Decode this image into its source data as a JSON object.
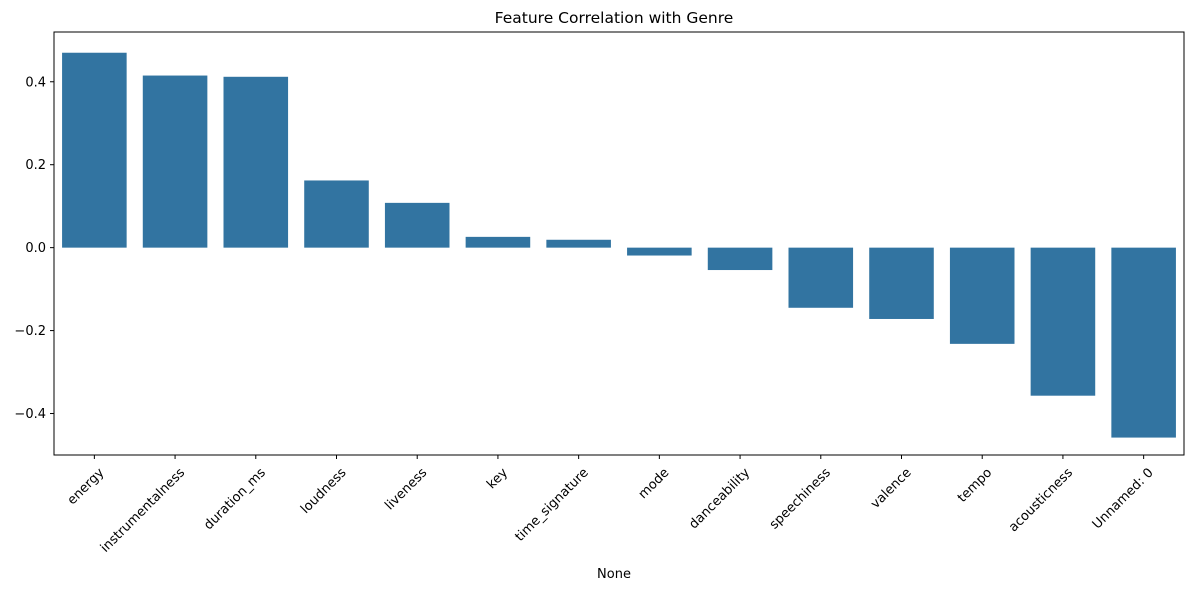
{
  "chart_data": {
    "type": "bar",
    "title": "Feature Correlation with Genre",
    "xlabel": "None",
    "ylabel": "",
    "categories": [
      "energy",
      "instrumentalness",
      "duration_ms",
      "loudness",
      "liveness",
      "key",
      "time_signature",
      "mode",
      "danceability",
      "speechiness",
      "valence",
      "tempo",
      "acousticness",
      "Unnamed: 0"
    ],
    "values": [
      0.47,
      0.415,
      0.412,
      0.162,
      0.108,
      0.026,
      0.019,
      -0.019,
      -0.054,
      -0.145,
      -0.172,
      -0.232,
      -0.357,
      -0.458
    ],
    "ylim": [
      -0.5,
      0.52
    ],
    "yticks": [
      -0.4,
      -0.2,
      0.0,
      0.2,
      0.4
    ],
    "ytick_labels": [
      "−0.4",
      "−0.2",
      "0.0",
      "0.2",
      "0.4"
    ],
    "bar_color": "#3274a1",
    "grid": false,
    "legend": "none"
  }
}
